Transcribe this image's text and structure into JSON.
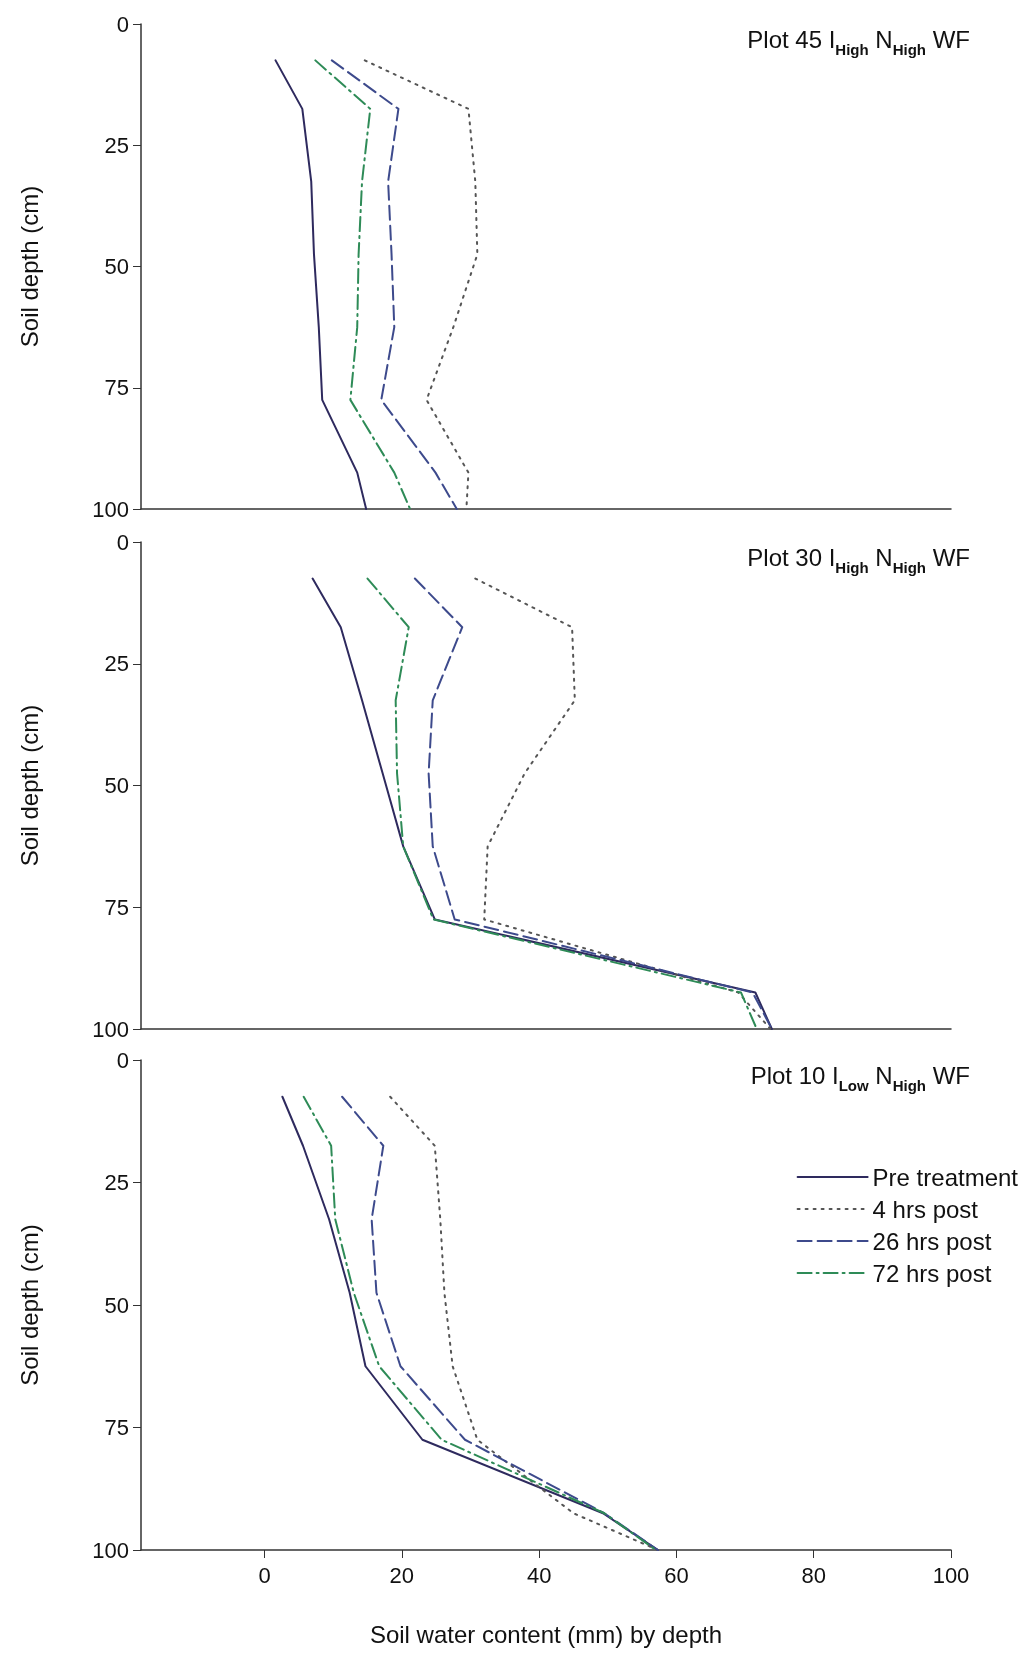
{
  "chart_data": [
    {
      "type": "line",
      "title": "Plot 45 I$_{High}$ N$_{High}$ WF",
      "ylabel": "Soil depth (cm)",
      "xlim": [
        -18,
        100
      ],
      "ylim": [
        100,
        0
      ],
      "yticks": [
        0,
        25,
        50,
        75,
        100
      ],
      "tick_labels": "y",
      "grid": false,
      "legend": false,
      "marker": "none",
      "series": [
        {
          "color": "#2e2a5e",
          "line_style": "solid",
          "x": [
            1.6,
            5.5,
            6.8,
            7.2,
            7.9,
            8.4,
            13.5,
            14.8
          ],
          "values": [
            7.5,
            17.5,
            32.5,
            47.5,
            62.5,
            77.5,
            92.5,
            100
          ]
        },
        {
          "color": "#555555",
          "line_style": "dotted",
          "x": [
            14.6,
            29.7,
            30.7,
            31,
            27.5,
            23.6,
            29.7,
            29.4
          ],
          "values": [
            7.5,
            17.5,
            32.5,
            47.5,
            62.5,
            77.5,
            92.5,
            100
          ]
        },
        {
          "color": "#3d4a8c",
          "line_style": "dashed",
          "x": [
            9.8,
            19.5,
            18,
            18.5,
            18.9,
            17,
            24.9,
            28
          ],
          "values": [
            7.5,
            17.5,
            32.5,
            47.5,
            62.5,
            77.5,
            92.5,
            100
          ]
        },
        {
          "color": "#2e8b57",
          "line_style": "dashdot",
          "x": [
            7.4,
            15.4,
            14.2,
            13.7,
            13.5,
            12.5,
            18.9,
            21.2
          ],
          "values": [
            7.5,
            17.5,
            32.5,
            47.5,
            62.5,
            77.5,
            92.5,
            100
          ]
        }
      ]
    },
    {
      "type": "line",
      "title": "Plot 30 I$_{High}$ N$_{High}$ WF",
      "ylabel": "Soil depth (cm)",
      "xlim": [
        -18,
        100
      ],
      "ylim": [
        100,
        0
      ],
      "yticks": [
        0,
        25,
        50,
        75,
        100
      ],
      "tick_labels": "y",
      "grid": false,
      "legend": false,
      "marker": "none",
      "series": [
        {
          "color": "#2e2a5e",
          "line_style": "solid",
          "x": [
            7,
            11.1,
            14.2,
            17.2,
            20.2,
            24.8,
            71.5,
            73.9
          ],
          "values": [
            7.5,
            17.5,
            32.5,
            47.5,
            62.5,
            77.5,
            92.5,
            100
          ]
        },
        {
          "color": "#555555",
          "line_style": "dotted",
          "x": [
            30.7,
            44.8,
            45.2,
            37.9,
            32.5,
            32,
            69,
            73.7
          ],
          "values": [
            7.5,
            17.5,
            32.5,
            47.5,
            62.5,
            77.5,
            92.5,
            100
          ]
        },
        {
          "color": "#3d4a8c",
          "line_style": "dashed",
          "x": [
            21.9,
            28.8,
            24.5,
            23.9,
            24.5,
            27.7,
            71.1,
            73.9
          ],
          "values": [
            7.5,
            17.5,
            32.5,
            47.5,
            62.5,
            77.5,
            92.5,
            100
          ]
        },
        {
          "color": "#2e8b57",
          "line_style": "dashdot",
          "x": [
            15,
            21,
            19.1,
            19.3,
            20.2,
            24.6,
            69.4,
            71.7
          ],
          "values": [
            7.5,
            17.5,
            32.5,
            47.5,
            62.5,
            77.5,
            92.5,
            100
          ]
        }
      ]
    },
    {
      "type": "line",
      "title": "Plot 10 I$_{Low}$ N$_{High}$ WF",
      "xlabel": "Soil water content (mm) by depth",
      "ylabel": "Soil depth (cm)",
      "xlim": [
        -18,
        100
      ],
      "xticks": [
        0,
        20,
        40,
        60,
        80,
        100
      ],
      "ylim": [
        100,
        0
      ],
      "yticks": [
        0,
        25,
        50,
        75,
        100
      ],
      "grid": false,
      "legend": "right",
      "marker": "none",
      "series": [
        {
          "name": "Pre treatment",
          "color": "#2e2a5e",
          "line_style": "solid",
          "x": [
            2.6,
            5.6,
            9.4,
            12.4,
            14.7,
            23,
            49.3,
            57.3
          ],
          "values": [
            7.5,
            17.5,
            32.5,
            47.5,
            62.5,
            77.5,
            92.5,
            100
          ]
        },
        {
          "name": "4 hrs post",
          "color": "#555555",
          "line_style": "dotted",
          "x": [
            18.3,
            24.8,
            25.6,
            26.2,
            27.4,
            31,
            45,
            57.3
          ],
          "values": [
            7.5,
            17.5,
            32.5,
            47.5,
            62.5,
            77.5,
            92.5,
            100
          ]
        },
        {
          "name": "26 hrs post",
          "color": "#3d4a8c",
          "line_style": "dashed",
          "x": [
            11.3,
            17.3,
            15.6,
            16.3,
            19.8,
            29.2,
            49.5,
            57.3
          ],
          "values": [
            7.5,
            17.5,
            32.5,
            47.5,
            62.5,
            77.5,
            92.5,
            100
          ]
        },
        {
          "name": "72 hrs post",
          "color": "#2e8b57",
          "line_style": "dashdot",
          "x": [
            5.7,
            9.7,
            10.3,
            13,
            16.7,
            25.8,
            49.5,
            57
          ],
          "values": [
            7.5,
            17.5,
            32.5,
            47.5,
            62.5,
            77.5,
            92.5,
            100
          ]
        }
      ]
    }
  ]
}
